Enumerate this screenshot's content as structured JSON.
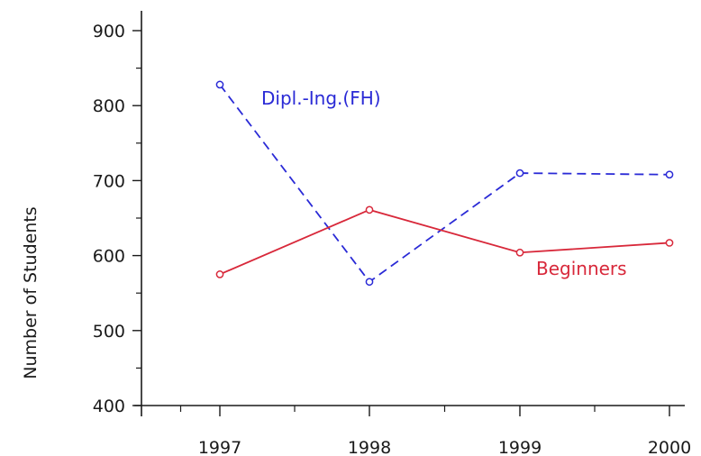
{
  "chart_data": {
    "type": "line",
    "title": "",
    "xlabel": "",
    "ylabel": "Number of Students",
    "x": [
      "1997",
      "1998",
      "1999",
      "2000"
    ],
    "ylim": [
      400,
      900
    ],
    "yticks": [
      400,
      500,
      600,
      700,
      800,
      900
    ],
    "grid": false,
    "legend": "inline labels",
    "series": [
      {
        "name": "Dipl.-Ing.(FH)",
        "values": [
          828,
          565,
          710,
          708
        ],
        "color": "#2a2ad6",
        "line_style": "dashed",
        "marker": "open-circle"
      },
      {
        "name": "Beginners",
        "values": [
          575,
          661,
          604,
          617
        ],
        "color": "#d8283a",
        "line_style": "solid",
        "marker": "open-circle"
      }
    ]
  }
}
